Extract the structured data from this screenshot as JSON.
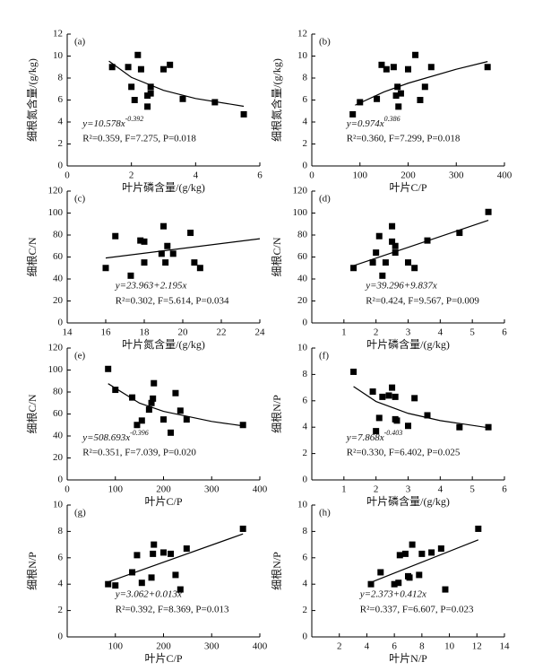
{
  "chart_data": [
    {
      "type": "scatter",
      "label": "(a)",
      "x_label": "叶片磷含量/(g/kg)",
      "y_label": "细根氮含量/(g/kg)",
      "color": "#000000",
      "xlim": [
        0,
        6
      ],
      "ylim": [
        0,
        12
      ],
      "xticks": [
        0,
        2,
        4,
        6
      ],
      "yticks": [
        0,
        2,
        4,
        6,
        8,
        10,
        12
      ],
      "x": [
        1.4,
        1.9,
        2.0,
        2.1,
        2.2,
        2.3,
        2.5,
        2.5,
        2.6,
        2.6,
        3.0,
        3.2,
        3.6,
        4.6,
        5.5
      ],
      "y": [
        9.0,
        9.0,
        7.2,
        6.0,
        10.1,
        8.8,
        5.4,
        6.4,
        7.2,
        6.6,
        8.8,
        9.2,
        6.1,
        5.8,
        4.7
      ],
      "fit": {
        "x": [
          1.3,
          2,
          3,
          4,
          5.5
        ],
        "y": [
          9.54,
          8.06,
          6.88,
          6.14,
          5.43
        ]
      },
      "equation": {
        "base": "y=10.578x",
        "exponent": "-0.392"
      },
      "stats": "R²=0.359, F=7.275, P=0.018"
    },
    {
      "type": "scatter",
      "label": "(b)",
      "x_label": "叶片C/P",
      "y_label": "细根氮含量/(g/kg)",
      "color": "#000000",
      "xlim": [
        0,
        400
      ],
      "ylim": [
        0,
        12
      ],
      "xticks": [
        0,
        100,
        200,
        300,
        400
      ],
      "yticks": [
        0,
        2,
        4,
        6,
        8,
        10,
        12
      ],
      "x": [
        85,
        100,
        135,
        145,
        155,
        170,
        175,
        178,
        180,
        185,
        200,
        215,
        225,
        235,
        248,
        365
      ],
      "y": [
        4.7,
        5.8,
        6.1,
        9.2,
        8.8,
        9.0,
        6.4,
        7.2,
        5.4,
        6.6,
        8.8,
        10.1,
        6.0,
        7.2,
        9.0,
        9.0
      ],
      "fit": {
        "x": [
          90,
          150,
          200,
          300,
          365
        ],
        "y": [
          5.53,
          6.74,
          7.53,
          8.8,
          9.5
        ]
      },
      "equation": {
        "base": "y=0.974x",
        "exponent": "0.386"
      },
      "stats": "R²=0.360, F=7.299, P=0.018"
    },
    {
      "type": "scatter",
      "label": "(c)",
      "x_label": "叶片氮含量/(g/kg)",
      "y_label": "细根C/N",
      "color": "#000000",
      "xlim": [
        14,
        24
      ],
      "ylim": [
        0,
        120
      ],
      "xticks": [
        14,
        16,
        18,
        20,
        22,
        24
      ],
      "yticks": [
        0,
        20,
        40,
        60,
        80,
        100,
        120
      ],
      "x": [
        16.0,
        16.5,
        17.3,
        17.8,
        18.0,
        18.0,
        18.9,
        19.0,
        19.1,
        19.2,
        19.5,
        20.4,
        20.6,
        20.9
      ],
      "y": [
        50,
        79,
        43,
        75,
        55,
        74,
        63,
        88,
        55,
        70,
        63,
        82,
        55,
        50
      ],
      "fit": {
        "x": [
          16,
          24
        ],
        "y": [
          59.08,
          76.64
        ]
      },
      "equation": "y=23.963+2.195x",
      "stats": "R²=0.302, F=5.614, P=0.034"
    },
    {
      "type": "scatter",
      "label": "(d)",
      "x_label": "叶片磷含量/(g/kg)",
      "y_label": "细根C/N",
      "color": "#000000",
      "xlim": [
        0,
        6
      ],
      "ylim": [
        0,
        120
      ],
      "xticks": [
        1,
        2,
        3,
        4,
        5,
        6
      ],
      "yticks": [
        0,
        20,
        40,
        60,
        80,
        100,
        120
      ],
      "x": [
        1.3,
        1.9,
        2.0,
        2.1,
        2.2,
        2.3,
        2.5,
        2.5,
        2.6,
        2.6,
        3.0,
        3.2,
        3.6,
        4.6,
        5.5
      ],
      "y": [
        50,
        55,
        64,
        79,
        43,
        55,
        74,
        88,
        70,
        64,
        55,
        50,
        75,
        82,
        101
      ],
      "fit": {
        "x": [
          1.3,
          5.5
        ],
        "y": [
          52.08,
          93.4
        ]
      },
      "equation": "y=39.296+9.837x",
      "stats": "R²=0.424, F=9.567, P=0.009"
    },
    {
      "type": "scatter",
      "label": "(e)",
      "x_label": "叶片C/P",
      "y_label": "细根C/N",
      "color": "#000000",
      "xlim": [
        0,
        400
      ],
      "ylim": [
        0,
        120
      ],
      "xticks": [
        0,
        100,
        200,
        300,
        400
      ],
      "yticks": [
        0,
        20,
        40,
        60,
        80,
        100,
        120
      ],
      "x": [
        85,
        100,
        135,
        145,
        155,
        170,
        175,
        178,
        180,
        200,
        215,
        225,
        235,
        248,
        365
      ],
      "y": [
        101,
        82,
        75,
        50,
        54,
        64,
        70,
        74,
        88,
        55,
        43,
        79,
        63,
        55,
        50
      ],
      "fit": {
        "x": [
          85,
          150,
          200,
          300,
          365
        ],
        "y": [
          87.6,
          69.9,
          62.4,
          53.2,
          49.2
        ]
      },
      "equation": {
        "base": "y=508.693x",
        "exponent": "-0.396"
      },
      "stats": "R²=0.351, F=7.039, P=0.020"
    },
    {
      "type": "scatter",
      "label": "(f)",
      "x_label": "叶片磷含量/(g/kg)",
      "y_label": "细根N/P",
      "color": "#000000",
      "xlim": [
        0,
        6
      ],
      "ylim": [
        0,
        10
      ],
      "xticks": [
        1,
        2,
        3,
        4,
        5,
        6
      ],
      "yticks": [
        0,
        2,
        4,
        6,
        8,
        10
      ],
      "x": [
        1.3,
        1.9,
        2.0,
        2.1,
        2.2,
        2.4,
        2.5,
        2.6,
        2.6,
        2.65,
        3.0,
        3.2,
        3.6,
        4.6,
        5.5
      ],
      "y": [
        8.2,
        6.7,
        3.7,
        4.7,
        6.3,
        6.4,
        7.0,
        6.3,
        4.6,
        4.5,
        4.1,
        6.2,
        4.9,
        4.0,
        4.0
      ],
      "fit": {
        "x": [
          1.3,
          2,
          3,
          4,
          5.5
        ],
        "y": [
          7.08,
          5.95,
          5.05,
          4.5,
          3.96
        ]
      },
      "equation": {
        "base": "y=7.868x",
        "exponent": "-0.403"
      },
      "stats": "R²=0.330, F=6.402, P=0.025"
    },
    {
      "type": "scatter",
      "label": "(g)",
      "x_label": "叶片C/P",
      "y_label": "细根N/P",
      "color": "#000000",
      "xlim": [
        0,
        400
      ],
      "ylim": [
        0,
        10
      ],
      "xticks": [
        100,
        200,
        300,
        400
      ],
      "yticks": [
        0,
        2,
        4,
        6,
        8,
        10
      ],
      "x": [
        85,
        100,
        135,
        145,
        155,
        175,
        178,
        180,
        200,
        215,
        225,
        235,
        248,
        365
      ],
      "y": [
        4.0,
        3.9,
        4.9,
        6.2,
        4.1,
        4.5,
        6.3,
        7.0,
        6.4,
        6.3,
        4.7,
        3.6,
        6.7,
        8.2
      ],
      "fit": {
        "x": [
          85,
          365
        ],
        "y": [
          4.17,
          7.81
        ]
      },
      "equation": "y=3.062+0.013x",
      "stats": "R²=0.392, F=8.369, P=0.013"
    },
    {
      "type": "scatter",
      "label": "(h)",
      "x_label": "叶片N/P",
      "y_label": "细根N/P",
      "color": "#000000",
      "xlim": [
        0,
        14
      ],
      "ylim": [
        0,
        10
      ],
      "xticks": [
        2,
        4,
        6,
        8,
        10,
        12,
        14
      ],
      "yticks": [
        0,
        2,
        4,
        6,
        8,
        10
      ],
      "x": [
        4.3,
        5.0,
        6.0,
        6.3,
        6.4,
        6.8,
        7.0,
        7.1,
        7.3,
        7.8,
        8.0,
        8.7,
        9.4,
        9.7,
        12.1
      ],
      "y": [
        4.0,
        4.9,
        4.0,
        4.1,
        6.2,
        6.3,
        4.6,
        4.5,
        7.0,
        4.7,
        6.3,
        6.4,
        6.7,
        3.6,
        8.2
      ],
      "fit": {
        "x": [
          4.3,
          12.1
        ],
        "y": [
          4.14,
          7.36
        ]
      },
      "equation": "y=2.373+0.412x",
      "stats": "R²=0.337, F=6.607, P=0.023"
    }
  ]
}
